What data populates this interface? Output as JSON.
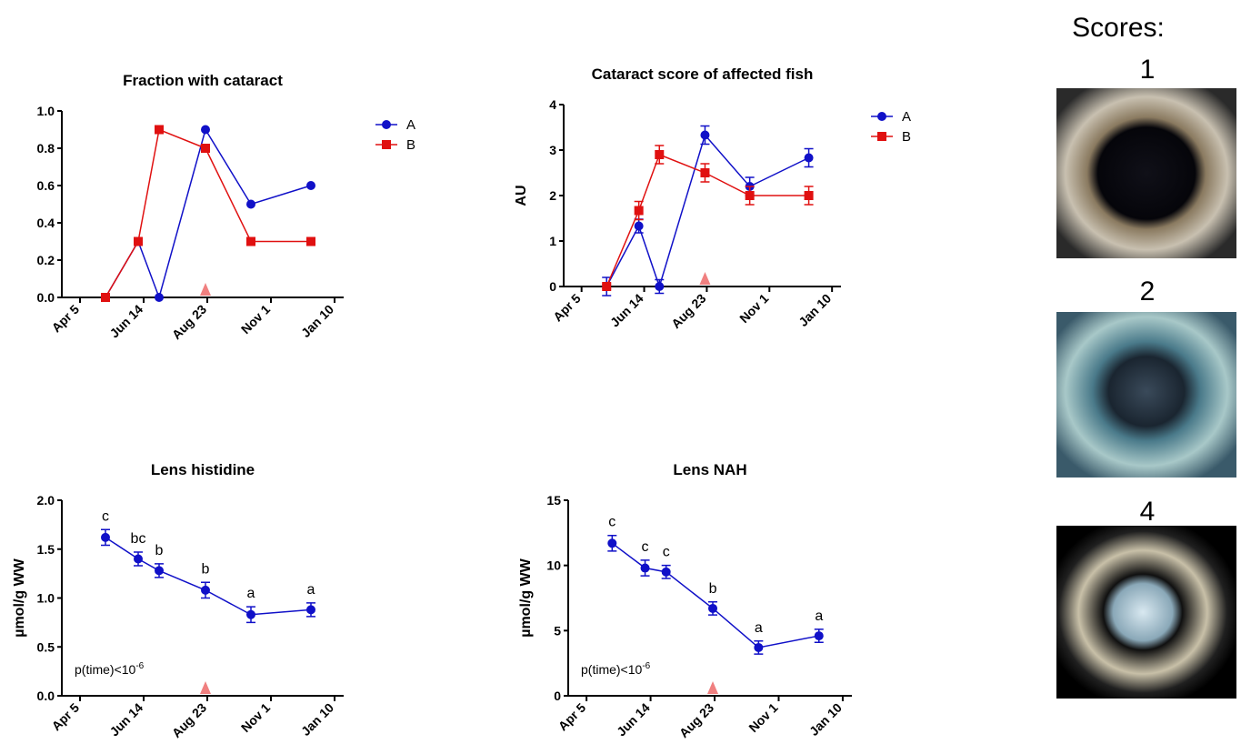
{
  "chart_data": [
    {
      "type": "line",
      "title": "Fraction with cataract",
      "x": [
        28,
        64,
        87,
        138,
        188,
        254
      ],
      "xlim": [
        -20,
        290
      ],
      "xticks": [
        {
          "value": 0,
          "label": "Apr 5"
        },
        {
          "value": 70,
          "label": "Jun 14"
        },
        {
          "value": 140,
          "label": "Aug 23"
        },
        {
          "value": 210,
          "label": "Nov 1"
        },
        {
          "value": 280,
          "label": "Jan 10"
        }
      ],
      "ylim": [
        0,
        1
      ],
      "yticks": [
        {
          "value": 0,
          "label": "0.0"
        },
        0.2,
        0.4,
        0.6,
        0.8,
        {
          "value": 1,
          "label": "1.0"
        }
      ],
      "marker_x": 138,
      "series": [
        {
          "name": "A",
          "color": "#1010c8",
          "marker": "circle",
          "values": [
            0,
            0.3,
            0,
            0.9,
            0.5,
            0.6
          ]
        },
        {
          "name": "B",
          "color": "#e01010",
          "marker": "square",
          "values": [
            0,
            0.3,
            0.9,
            0.8,
            0.3,
            0.3
          ]
        }
      ]
    },
    {
      "type": "line",
      "title": "Cataract score of affected fish",
      "y_label": "AU",
      "x": [
        28,
        64,
        87,
        138,
        188,
        254
      ],
      "xlim": [
        -20,
        290
      ],
      "xticks": [
        {
          "value": 0,
          "label": "Apr 5"
        },
        {
          "value": 70,
          "label": "Jun 14"
        },
        {
          "value": 140,
          "label": "Aug 23"
        },
        {
          "value": 210,
          "label": "Nov 1"
        },
        {
          "value": 280,
          "label": "Jan 10"
        }
      ],
      "ylim": [
        0,
        4
      ],
      "yticks": [
        0,
        1,
        2,
        3,
        4
      ],
      "marker_x": 138,
      "series": [
        {
          "name": "A",
          "color": "#1010c8",
          "marker": "circle",
          "values": [
            0,
            1.33,
            0,
            3.33,
            2.2,
            2.83
          ],
          "errors": [
            0.2,
            0.15,
            0.15,
            0.2,
            0.2,
            0.2
          ]
        },
        {
          "name": "B",
          "color": "#e01010",
          "marker": "square",
          "values": [
            0,
            1.67,
            2.9,
            2.5,
            2.0,
            2.0
          ],
          "errors": [
            0.05,
            0.2,
            0.2,
            0.2,
            0.2,
            0.2
          ]
        }
      ]
    },
    {
      "type": "line",
      "title": "Lens histidine",
      "y_label": "µmol/g WW",
      "annotation": {
        "text": "p(time)<10",
        "superscript": "-6"
      },
      "x": [
        28,
        64,
        87,
        138,
        188,
        254
      ],
      "xlim": [
        -20,
        290
      ],
      "xticks": [
        {
          "value": 0,
          "label": "Apr 5"
        },
        {
          "value": 70,
          "label": "Jun 14"
        },
        {
          "value": 140,
          "label": "Aug 23"
        },
        {
          "value": 210,
          "label": "Nov 1"
        },
        {
          "value": 280,
          "label": "Jan 10"
        }
      ],
      "ylim": [
        0,
        2
      ],
      "yticks": [
        {
          "value": 0,
          "label": "0.0"
        },
        0.5,
        {
          "value": 1,
          "label": "1.0"
        },
        1.5,
        {
          "value": 2,
          "label": "2.0"
        }
      ],
      "marker_x": 138,
      "series": [
        {
          "color": "#1010c8",
          "marker": "circle",
          "values": [
            1.62,
            1.4,
            1.28,
            1.08,
            0.83,
            0.88
          ],
          "errors": [
            0.08,
            0.07,
            0.07,
            0.08,
            0.08,
            0.07
          ],
          "labels": [
            "c",
            "bc",
            "b",
            "b",
            "a",
            "a"
          ]
        }
      ]
    },
    {
      "type": "line",
      "title": "Lens NAH",
      "y_label": "µmol/g WW",
      "annotation": {
        "text": "p(time)<10",
        "superscript": "-6"
      },
      "x": [
        28,
        64,
        87,
        138,
        188,
        254
      ],
      "xlim": [
        -20,
        290
      ],
      "xticks": [
        {
          "value": 0,
          "label": "Apr 5"
        },
        {
          "value": 70,
          "label": "Jun 14"
        },
        {
          "value": 140,
          "label": "Aug 23"
        },
        {
          "value": 210,
          "label": "Nov 1"
        },
        {
          "value": 280,
          "label": "Jan 10"
        }
      ],
      "ylim": [
        0,
        15
      ],
      "yticks": [
        0,
        5,
        10,
        15
      ],
      "marker_x": 138,
      "series": [
        {
          "color": "#1010c8",
          "marker": "circle",
          "values": [
            11.7,
            9.8,
            9.5,
            6.7,
            3.7,
            4.6
          ],
          "errors": [
            0.6,
            0.6,
            0.5,
            0.5,
            0.5,
            0.5
          ],
          "labels": [
            "c",
            "c",
            "c",
            "b",
            "a",
            "a"
          ]
        }
      ]
    }
  ],
  "scores_panel": {
    "title": "Scores:",
    "labels": [
      "1",
      "2",
      "4"
    ]
  }
}
